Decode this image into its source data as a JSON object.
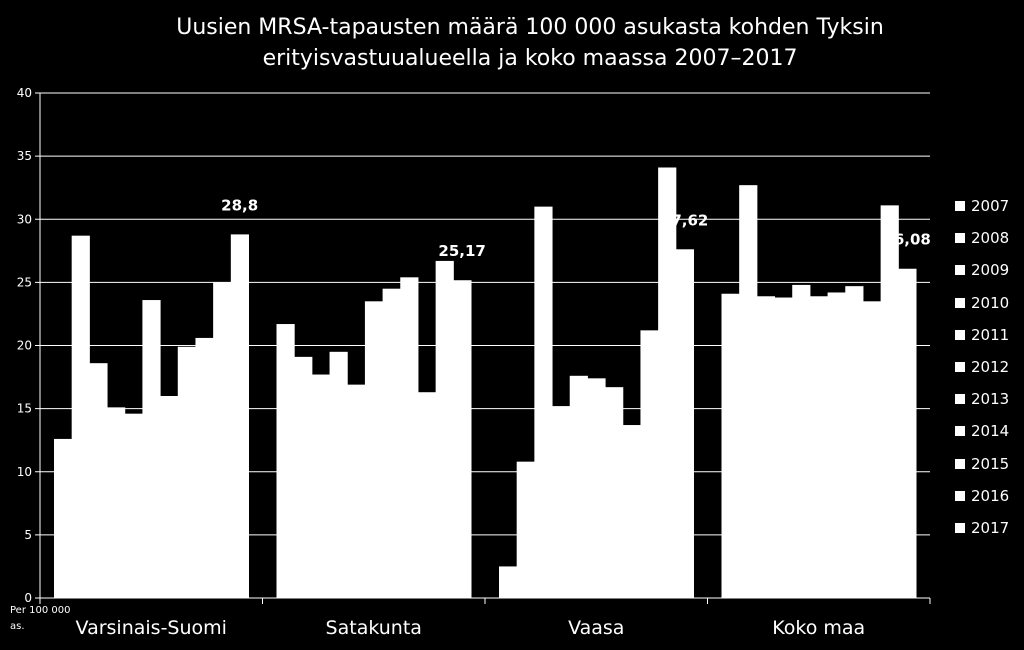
{
  "chart_data": {
    "type": "bar",
    "title_lines": [
      "Uusien MRSA-tapausten määrä 100 000 asukasta kohden Tyksin",
      "erityisvastuualueella ja koko maassa 2007–2017"
    ],
    "ylabel": "Per 100 000 as.",
    "ylim": [
      0,
      40
    ],
    "yticks": [
      0,
      5,
      10,
      15,
      20,
      25,
      30,
      35,
      40
    ],
    "grid": true,
    "legend_position": "right",
    "categories": [
      "Varsinais-Suomi",
      "Satakunta",
      "Vaasa",
      "Koko maa"
    ],
    "series": [
      {
        "name": "2007",
        "values": [
          12.6,
          21.7,
          2.5,
          24.1
        ]
      },
      {
        "name": "2008",
        "values": [
          28.7,
          19.1,
          10.8,
          32.7
        ]
      },
      {
        "name": "2009",
        "values": [
          18.6,
          17.7,
          31.0,
          23.9
        ]
      },
      {
        "name": "2010",
        "values": [
          15.1,
          19.5,
          15.2,
          23.8
        ]
      },
      {
        "name": "2011",
        "values": [
          14.6,
          16.9,
          17.6,
          24.8
        ]
      },
      {
        "name": "2012",
        "values": [
          23.6,
          23.5,
          17.4,
          23.9
        ]
      },
      {
        "name": "2013",
        "values": [
          16.0,
          24.5,
          16.7,
          24.2
        ]
      },
      {
        "name": "2014",
        "values": [
          19.9,
          25.4,
          13.7,
          24.7
        ]
      },
      {
        "name": "2015",
        "values": [
          20.6,
          16.3,
          21.2,
          23.5
        ]
      },
      {
        "name": "2016",
        "values": [
          25.0,
          26.7,
          34.1,
          31.1
        ]
      },
      {
        "name": "2017",
        "values": [
          28.8,
          25.17,
          27.62,
          26.08
        ]
      }
    ],
    "data_labels": [
      "28,8",
      "25,17",
      "27,62",
      "26,08"
    ],
    "colors": {
      "background": "#000000",
      "bars": "#ffffff",
      "grid": "#ffffff"
    }
  }
}
